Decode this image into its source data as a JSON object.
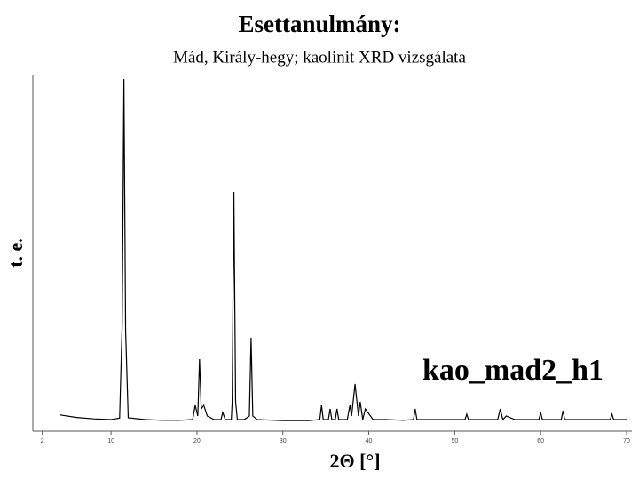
{
  "chart_data": {
    "type": "line",
    "title": "Esettanulmány:",
    "subtitle": "Mád, Király-hegy; kaolinit XRD vizsgálata",
    "y_label": "t. e.",
    "x_label": "2Θ  [°]",
    "annotation": "kao_mad2_h1",
    "xlim": [
      0.9,
      70
    ],
    "xticks": [
      2,
      10,
      20,
      30,
      40,
      50,
      60,
      70
    ],
    "ylim": [
      0,
      100
    ],
    "x": [
      4.1,
      6,
      8,
      10,
      11,
      11.3,
      11.5,
      11.7,
      12,
      14,
      16,
      18,
      19.5,
      19.8,
      20.1,
      20.3,
      20.5,
      20.8,
      21.2,
      22,
      22.8,
      23,
      23.3,
      24,
      24.1,
      24.3,
      24.5,
      24.7,
      25.5,
      26.1,
      26.3,
      26.5,
      27,
      30,
      33,
      34.3,
      34.5,
      34.7,
      35.3,
      35.5,
      35.7,
      36.1,
      36.3,
      36.5,
      37.5,
      37.8,
      38,
      38.4,
      38.8,
      39,
      39.3,
      39.6,
      40.5,
      42,
      44,
      45.2,
      45.4,
      45.6,
      47,
      50,
      51.2,
      51.4,
      51.6,
      55,
      55.3,
      55.6,
      56,
      57,
      58,
      59.8,
      60,
      60.2,
      62.4,
      62.6,
      62.8,
      65,
      68.1,
      68.3,
      68.5,
      70
    ],
    "series": [
      {
        "color": "#000000",
        "values": [
          4.3,
          3.6,
          3.2,
          3,
          3.4,
          30,
          99,
          28,
          3.5,
          3,
          2.8,
          2.8,
          3,
          7,
          4,
          20,
          6,
          7,
          4,
          3,
          3,
          5,
          3,
          3,
          8,
          67,
          8,
          3,
          3,
          4,
          26,
          4,
          3,
          2.7,
          2.7,
          3,
          7,
          3,
          3,
          6,
          3,
          3,
          6,
          3,
          3,
          7,
          4,
          13,
          4,
          8,
          3,
          6,
          3,
          3,
          2.8,
          3,
          6,
          3,
          3,
          3,
          3,
          4.5,
          3,
          3,
          6,
          3,
          4,
          3,
          3,
          3,
          5,
          3,
          3,
          5.5,
          3,
          3,
          3,
          4.5,
          3,
          3
        ]
      }
    ]
  }
}
